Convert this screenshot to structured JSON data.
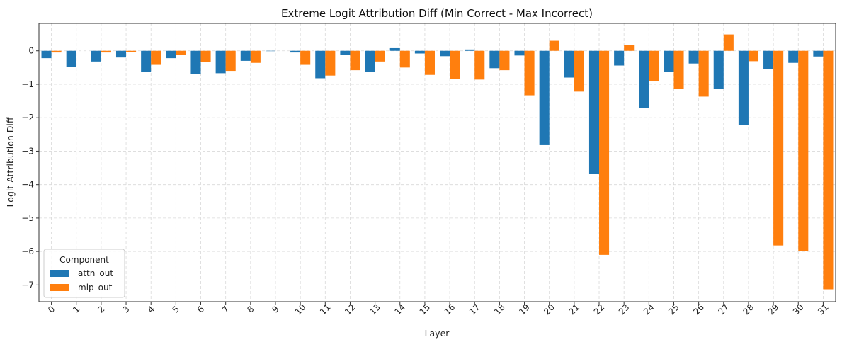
{
  "chart_data": {
    "type": "bar",
    "title": "Extreme Logit Attribution Diff (Min Correct - Max Incorrect)",
    "xlabel": "Layer",
    "ylabel": "Logit Attribution Diff",
    "categories": [
      "0",
      "1",
      "2",
      "3",
      "4",
      "5",
      "6",
      "7",
      "8",
      "9",
      "10",
      "11",
      "12",
      "13",
      "14",
      "15",
      "16",
      "17",
      "18",
      "19",
      "20",
      "21",
      "22",
      "23",
      "24",
      "25",
      "26",
      "27",
      "28",
      "29",
      "30",
      "31"
    ],
    "series": [
      {
        "name": "attn_out",
        "color": "#1f77b4",
        "values": [
          -0.22,
          -0.48,
          -0.32,
          -0.2,
          -0.62,
          -0.22,
          -0.7,
          -0.67,
          -0.3,
          -0.01,
          -0.05,
          -0.82,
          -0.12,
          -0.62,
          0.08,
          -0.08,
          -0.16,
          0.04,
          -0.52,
          -0.14,
          -2.82,
          -0.8,
          -3.68,
          -0.44,
          -1.71,
          -0.64,
          -0.38,
          -1.13,
          -2.21,
          -0.54,
          -0.36,
          -0.17
        ]
      },
      {
        "name": "mlp_out",
        "color": "#ff7f0e",
        "values": [
          -0.05,
          0.0,
          -0.05,
          -0.03,
          -0.42,
          -0.12,
          -0.34,
          -0.6,
          -0.36,
          0.0,
          -0.42,
          -0.74,
          -0.58,
          -0.32,
          -0.5,
          -0.72,
          -0.84,
          -0.86,
          -0.58,
          -1.33,
          0.3,
          -1.22,
          -6.1,
          0.18,
          -0.9,
          -1.14,
          -1.37,
          0.49,
          -0.31,
          -5.82,
          -5.98,
          -7.13
        ]
      }
    ],
    "ylim": [
      -7.5,
      0.82
    ],
    "yticks": [
      0,
      -1,
      -2,
      -3,
      -4,
      -5,
      -6,
      -7
    ],
    "ytick_labels": [
      "0",
      "−1",
      "−2",
      "−3",
      "−4",
      "−5",
      "−6",
      "−7"
    ],
    "grid": true,
    "legend": {
      "title": "Component",
      "placement": "lower-left"
    }
  }
}
